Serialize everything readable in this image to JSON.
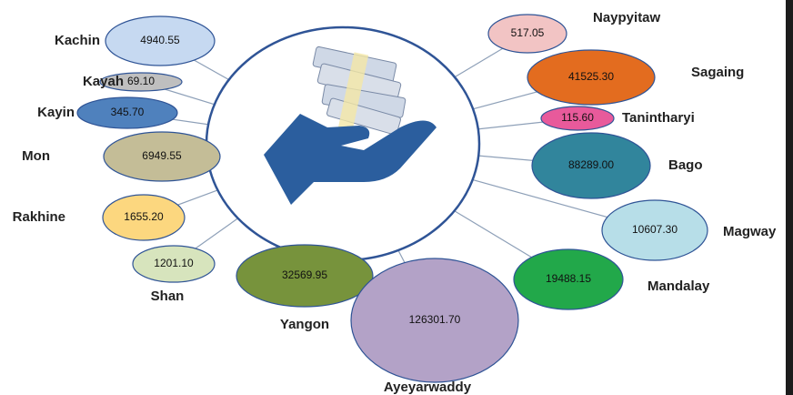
{
  "nodes": [
    {
      "name": "Kachin",
      "value": "4940.55",
      "color": "#c6d9f1"
    },
    {
      "name": "Kayah",
      "value": "69.10",
      "color": "#bfbfbf"
    },
    {
      "name": "Kayin",
      "value": "345.70",
      "color": "#4f81bd"
    },
    {
      "name": "Mon",
      "value": "6949.55",
      "color": "#c4bd97"
    },
    {
      "name": "Rakhine",
      "value": "1655.20",
      "color": "#fcd77f"
    },
    {
      "name": "Shan",
      "value": "1201.10",
      "color": "#d7e4bd"
    },
    {
      "name": "Yangon",
      "value": "32569.95",
      "color": "#77933c"
    },
    {
      "name": "Ayeyarwaddy",
      "value": "126301.70",
      "color": "#b3a2c7"
    },
    {
      "name": "Naypyitaw",
      "value": "517.05",
      "color": "#f2c4c4"
    },
    {
      "name": "Sagaing",
      "value": "41525.30",
      "color": "#e36c1f"
    },
    {
      "name": "Tanintharyi",
      "value": "115.60",
      "color": "#e85a9b"
    },
    {
      "name": "Bago",
      "value": "88289.00",
      "color": "#31859c"
    },
    {
      "name": "Magway",
      "value": "10607.30",
      "color": "#b7dee8"
    },
    {
      "name": "Mandalay",
      "value": "19488.15",
      "color": "#22a84a"
    }
  ]
}
